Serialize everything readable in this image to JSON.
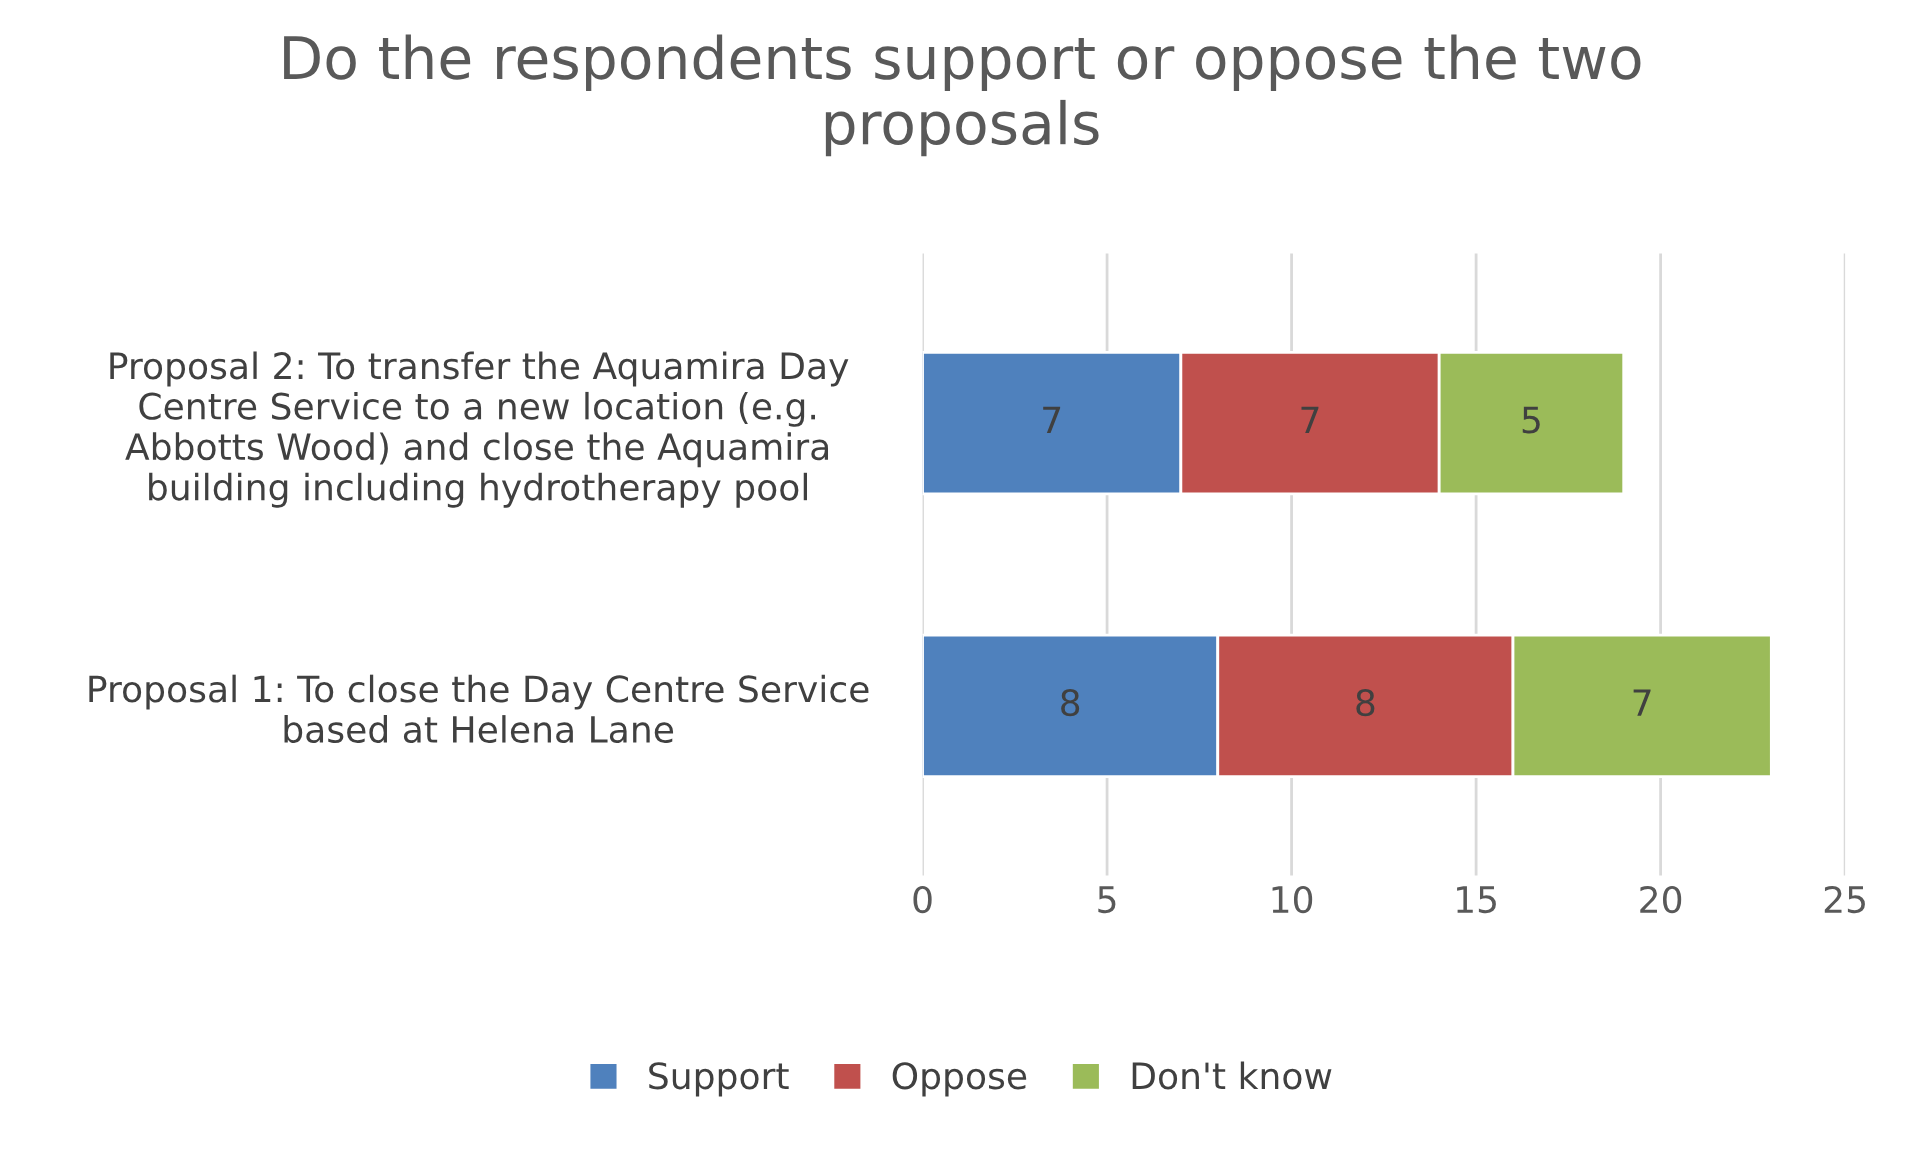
{
  "chart_data": {
    "type": "bar",
    "orientation": "horizontal",
    "stacked": true,
    "title": "Do the respondents support or oppose the two\nproposals",
    "categories": [
      "Proposal 2: To transfer the Aquamira Day\nCentre Service to a new location (e.g.\nAbbotts Wood) and close the Aquamira\nbuilding including hydrotherapy pool",
      "Proposal 1: To close the Day Centre Service\nbased at Helena Lane"
    ],
    "series": [
      {
        "name": "Support",
        "color": "#4f81bd",
        "values": [
          7,
          8
        ]
      },
      {
        "name": "Oppose",
        "color": "#c0504d",
        "values": [
          7,
          8
        ]
      },
      {
        "name": "Don't know",
        "color": "#9bbb59",
        "values": [
          5,
          7
        ]
      }
    ],
    "xlim": [
      0,
      25
    ],
    "xticks": [
      0,
      5,
      10,
      15,
      20,
      25
    ],
    "grid": "x",
    "legend": "bottom",
    "data_labels": true
  }
}
